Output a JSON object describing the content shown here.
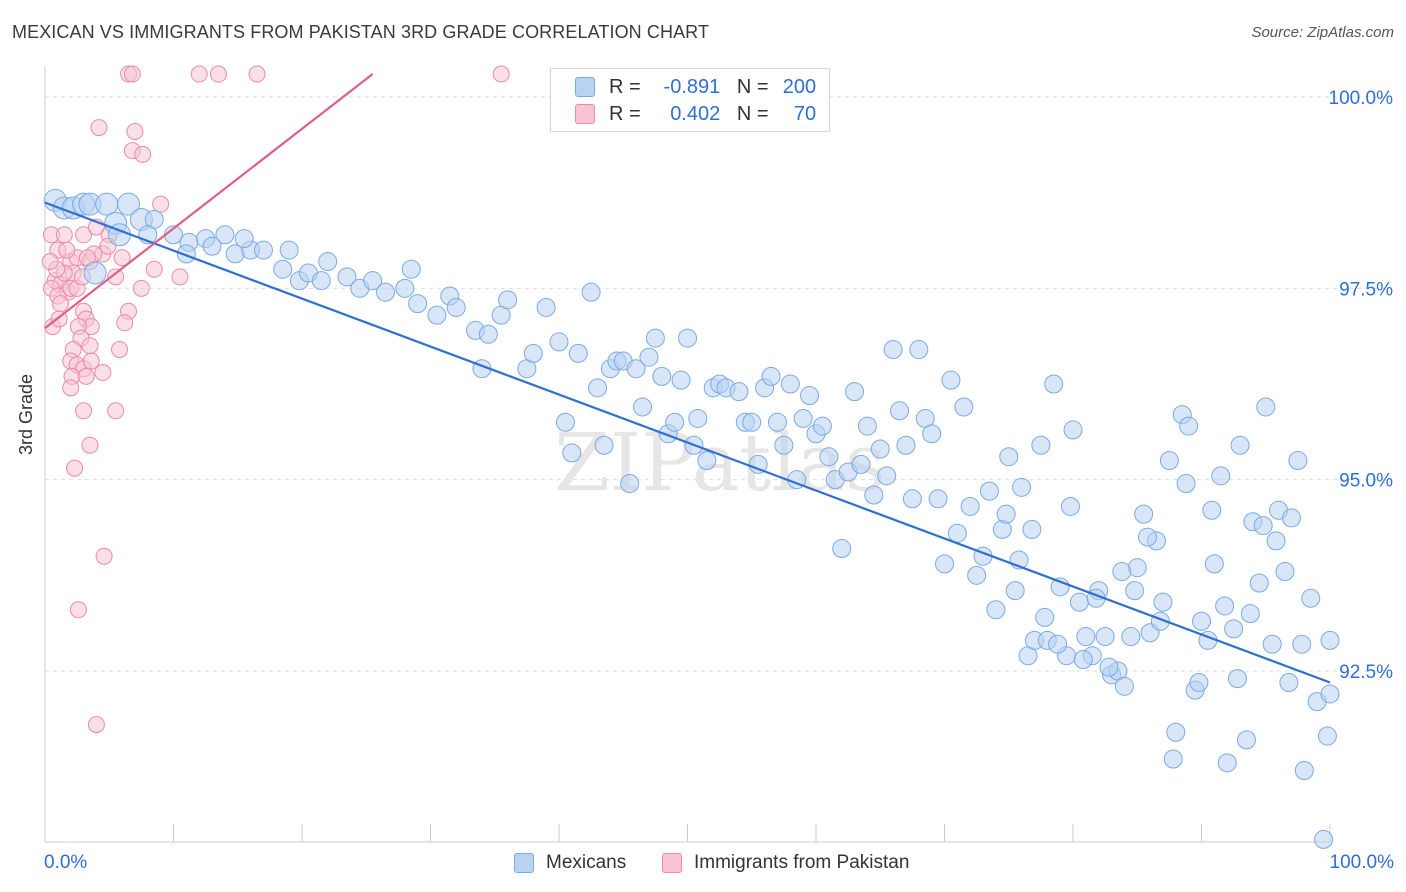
{
  "title": "MEXICAN VS IMMIGRANTS FROM PAKISTAN 3RD GRADE CORRELATION CHART",
  "source": "Source: ZipAtlas.com",
  "watermark": "ZIPatlas",
  "legend": {
    "rows": [
      {
        "r_label": "R =",
        "r_value": "-0.891",
        "n_label": "N =",
        "n_value": "200",
        "color": "#a8c8f0",
        "border": "#6fa0e0"
      },
      {
        "r_label": "R =",
        "r_value": "0.402",
        "n_label": "N =",
        "n_value": "70",
        "color": "#f8b8c8",
        "border": "#e890a8"
      }
    ]
  },
  "bottom_legend": {
    "mexicans": "Mexicans",
    "pakistan": "Immigrants from Pakistan"
  },
  "chart_data": {
    "type": "scatter",
    "title": "MEXICAN VS IMMIGRANTS FROM PAKISTAN 3RD GRADE CORRELATION CHART",
    "xlabel": "",
    "ylabel": "3rd Grade",
    "xlim": [
      0,
      100
    ],
    "ylim": [
      90.0,
      100.5
    ],
    "x_tick_labels": {
      "left": "0.0%",
      "right": "100.0%"
    },
    "y_ticks": [
      {
        "value": 100.0,
        "label": "100.0%"
      },
      {
        "value": 97.5,
        "label": "97.5%"
      },
      {
        "value": 95.0,
        "label": "95.0%"
      },
      {
        "value": 92.5,
        "label": "92.5%"
      }
    ],
    "colors": {
      "mexicans": "#7aaae6",
      "mexicans_fill": "#b8d2f2",
      "pakistan": "#ec8aa8",
      "pakistan_fill": "#f8c4d2",
      "mex_line": "#2f6fd1",
      "pak_line": "#e05c8a",
      "grid": "#dddddd"
    },
    "series": [
      {
        "name": "Mexicans",
        "trend": {
          "x0": 0,
          "y0": 98.62,
          "x1": 100,
          "y1": 92.35
        },
        "points": [
          [
            0.8,
            98.65
          ],
          [
            1.5,
            98.55
          ],
          [
            2.2,
            98.55
          ],
          [
            3.0,
            98.6
          ],
          [
            3.5,
            98.6
          ],
          [
            4.8,
            98.6
          ],
          [
            6.5,
            98.6
          ],
          [
            5.5,
            98.35
          ],
          [
            7.5,
            98.4
          ],
          [
            8.5,
            98.4
          ],
          [
            8.0,
            98.2
          ],
          [
            10.0,
            98.2
          ],
          [
            11.2,
            98.1
          ],
          [
            12.5,
            98.15
          ],
          [
            14.0,
            98.2
          ],
          [
            13.0,
            98.05
          ],
          [
            14.8,
            97.95
          ],
          [
            16.0,
            98.0
          ],
          [
            17.0,
            98.0
          ],
          [
            5.8,
            98.2
          ],
          [
            3.9,
            97.7
          ],
          [
            11.0,
            97.95
          ],
          [
            15.5,
            98.15
          ],
          [
            19.0,
            98.0
          ],
          [
            18.5,
            97.75
          ],
          [
            19.8,
            97.6
          ],
          [
            20.5,
            97.7
          ],
          [
            21.5,
            97.6
          ],
          [
            22.0,
            97.85
          ],
          [
            23.5,
            97.65
          ],
          [
            24.5,
            97.5
          ],
          [
            25.5,
            97.6
          ],
          [
            26.5,
            97.45
          ],
          [
            28.0,
            97.5
          ],
          [
            28.5,
            97.75
          ],
          [
            29.0,
            97.3
          ],
          [
            30.5,
            97.15
          ],
          [
            31.5,
            97.4
          ],
          [
            32.0,
            97.25
          ],
          [
            33.5,
            96.95
          ],
          [
            34.0,
            96.45
          ],
          [
            34.5,
            96.9
          ],
          [
            35.5,
            97.15
          ],
          [
            36.0,
            97.35
          ],
          [
            37.5,
            96.45
          ],
          [
            38.0,
            96.65
          ],
          [
            39.0,
            97.25
          ],
          [
            40.0,
            96.8
          ],
          [
            40.5,
            95.75
          ],
          [
            41.0,
            95.35
          ],
          [
            41.5,
            96.65
          ],
          [
            42.5,
            97.45
          ],
          [
            43.0,
            96.2
          ],
          [
            43.5,
            95.45
          ],
          [
            44.0,
            96.45
          ],
          [
            44.5,
            96.55
          ],
          [
            45.0,
            96.55
          ],
          [
            45.5,
            94.95
          ],
          [
            46.0,
            96.45
          ],
          [
            46.5,
            95.95
          ],
          [
            47.0,
            96.6
          ],
          [
            47.5,
            96.85
          ],
          [
            48.0,
            96.35
          ],
          [
            48.5,
            95.6
          ],
          [
            49.0,
            95.75
          ],
          [
            49.5,
            96.3
          ],
          [
            50.0,
            96.85
          ],
          [
            50.5,
            95.45
          ],
          [
            50.8,
            95.8
          ],
          [
            51.5,
            95.25
          ],
          [
            52.0,
            96.2
          ],
          [
            52.5,
            96.25
          ],
          [
            53.0,
            96.2
          ],
          [
            54.0,
            96.15
          ],
          [
            54.5,
            95.75
          ],
          [
            55.0,
            95.75
          ],
          [
            55.5,
            95.2
          ],
          [
            56.0,
            96.2
          ],
          [
            56.5,
            96.35
          ],
          [
            57.0,
            95.75
          ],
          [
            57.5,
            95.45
          ],
          [
            58.0,
            96.25
          ],
          [
            58.5,
            95.0
          ],
          [
            59.0,
            95.8
          ],
          [
            59.5,
            96.1
          ],
          [
            60.0,
            95.6
          ],
          [
            60.5,
            95.7
          ],
          [
            61.0,
            95.3
          ],
          [
            61.5,
            95.0
          ],
          [
            62.0,
            94.1
          ],
          [
            62.5,
            95.1
          ],
          [
            63.0,
            96.15
          ],
          [
            63.5,
            95.2
          ],
          [
            64.0,
            95.7
          ],
          [
            64.5,
            94.8
          ],
          [
            65.0,
            95.4
          ],
          [
            65.5,
            95.05
          ],
          [
            66.0,
            96.7
          ],
          [
            66.5,
            95.9
          ],
          [
            67.0,
            95.45
          ],
          [
            67.5,
            94.75
          ],
          [
            68.0,
            96.7
          ],
          [
            68.5,
            95.8
          ],
          [
            69.0,
            95.6
          ],
          [
            69.5,
            94.75
          ],
          [
            70.0,
            93.9
          ],
          [
            70.5,
            96.3
          ],
          [
            71.0,
            94.3
          ],
          [
            71.5,
            95.95
          ],
          [
            72.0,
            94.65
          ],
          [
            72.5,
            93.75
          ],
          [
            73.0,
            94.0
          ],
          [
            73.5,
            94.85
          ],
          [
            74.0,
            93.3
          ],
          [
            74.5,
            94.35
          ],
          [
            75.0,
            95.3
          ],
          [
            75.5,
            93.55
          ],
          [
            76.0,
            94.9
          ],
          [
            76.5,
            92.7
          ],
          [
            77.0,
            92.9
          ],
          [
            77.5,
            95.45
          ],
          [
            78.0,
            92.9
          ],
          [
            78.5,
            96.25
          ],
          [
            79.0,
            93.6
          ],
          [
            79.5,
            92.7
          ],
          [
            80.0,
            95.65
          ],
          [
            80.5,
            93.4
          ],
          [
            81.0,
            92.95
          ],
          [
            81.5,
            92.7
          ],
          [
            82.0,
            93.55
          ],
          [
            82.5,
            92.95
          ],
          [
            83.0,
            92.45
          ],
          [
            83.5,
            92.5
          ],
          [
            84.0,
            92.3
          ],
          [
            84.5,
            92.95
          ],
          [
            85.0,
            93.85
          ],
          [
            85.5,
            94.55
          ],
          [
            86.0,
            93.0
          ],
          [
            86.5,
            94.2
          ],
          [
            87.0,
            93.4
          ],
          [
            87.5,
            95.25
          ],
          [
            88.0,
            91.7
          ],
          [
            88.5,
            95.85
          ],
          [
            89.0,
            95.7
          ],
          [
            89.5,
            92.25
          ],
          [
            90.0,
            93.15
          ],
          [
            90.5,
            92.9
          ],
          [
            91.0,
            93.9
          ],
          [
            91.5,
            95.05
          ],
          [
            92.0,
            91.3
          ],
          [
            92.5,
            93.05
          ],
          [
            93.0,
            95.45
          ],
          [
            93.5,
            91.6
          ],
          [
            94.0,
            94.45
          ],
          [
            94.5,
            93.65
          ],
          [
            95.0,
            95.95
          ],
          [
            95.5,
            92.85
          ],
          [
            96.0,
            94.6
          ],
          [
            96.5,
            93.8
          ],
          [
            97.0,
            94.5
          ],
          [
            97.5,
            95.25
          ],
          [
            98.0,
            91.2
          ],
          [
            98.5,
            93.45
          ],
          [
            99.0,
            92.1
          ],
          [
            99.5,
            90.3
          ],
          [
            100.0,
            92.9
          ],
          [
            99.8,
            91.65
          ],
          [
            100.0,
            92.2
          ],
          [
            97.8,
            92.85
          ],
          [
            96.8,
            92.35
          ],
          [
            95.8,
            94.2
          ],
          [
            94.8,
            94.4
          ],
          [
            93.8,
            93.25
          ],
          [
            92.8,
            92.4
          ],
          [
            91.8,
            93.35
          ],
          [
            90.8,
            94.6
          ],
          [
            89.8,
            92.35
          ],
          [
            88.8,
            94.95
          ],
          [
            87.8,
            91.35
          ],
          [
            86.8,
            93.15
          ],
          [
            85.8,
            94.25
          ],
          [
            84.8,
            93.55
          ],
          [
            83.8,
            93.8
          ],
          [
            82.8,
            92.55
          ],
          [
            81.8,
            93.45
          ],
          [
            80.8,
            92.65
          ],
          [
            79.8,
            94.65
          ],
          [
            78.8,
            92.85
          ],
          [
            77.8,
            93.2
          ],
          [
            76.8,
            94.35
          ],
          [
            75.8,
            93.95
          ],
          [
            74.8,
            94.55
          ]
        ]
      },
      {
        "name": "Immigrants from Pakistan",
        "trend": {
          "x0": 0,
          "y0": 96.98,
          "x1": 25.5,
          "y1": 100.3
        },
        "points": [
          [
            6.5,
            100.3
          ],
          [
            6.8,
            100.3
          ],
          [
            12.0,
            100.3
          ],
          [
            13.5,
            100.3
          ],
          [
            16.5,
            100.3
          ],
          [
            35.5,
            100.3
          ],
          [
            4.2,
            99.6
          ],
          [
            7.0,
            99.55
          ],
          [
            6.8,
            99.3
          ],
          [
            7.6,
            99.25
          ],
          [
            9.0,
            98.6
          ],
          [
            0.5,
            98.2
          ],
          [
            1.0,
            98.0
          ],
          [
            1.5,
            98.2
          ],
          [
            2.0,
            97.85
          ],
          [
            2.5,
            97.9
          ],
          [
            3.0,
            98.2
          ],
          [
            3.5,
            97.85
          ],
          [
            4.0,
            98.3
          ],
          [
            4.5,
            97.95
          ],
          [
            5.0,
            98.2
          ],
          [
            5.5,
            97.65
          ],
          [
            6.0,
            97.9
          ],
          [
            6.5,
            97.2
          ],
          [
            7.5,
            97.5
          ],
          [
            8.5,
            97.75
          ],
          [
            10.5,
            97.65
          ],
          [
            0.8,
            97.6
          ],
          [
            1.2,
            97.55
          ],
          [
            1.8,
            97.45
          ],
          [
            2.2,
            97.7
          ],
          [
            0.5,
            97.5
          ],
          [
            1.0,
            97.4
          ],
          [
            1.5,
            97.7
          ],
          [
            2.0,
            97.5
          ],
          [
            2.5,
            97.5
          ],
          [
            3.0,
            97.2
          ],
          [
            3.2,
            97.1
          ],
          [
            3.6,
            97.0
          ],
          [
            0.6,
            97.0
          ],
          [
            1.1,
            97.1
          ],
          [
            2.6,
            97.0
          ],
          [
            2.8,
            96.85
          ],
          [
            3.5,
            96.75
          ],
          [
            2.2,
            96.7
          ],
          [
            2.0,
            96.55
          ],
          [
            2.5,
            96.5
          ],
          [
            3.0,
            96.45
          ],
          [
            3.6,
            96.55
          ],
          [
            4.5,
            96.4
          ],
          [
            5.8,
            96.7
          ],
          [
            6.2,
            97.05
          ],
          [
            2.1,
            96.35
          ],
          [
            3.2,
            96.35
          ],
          [
            2.0,
            96.2
          ],
          [
            3.0,
            95.9
          ],
          [
            5.5,
            95.9
          ],
          [
            3.5,
            95.45
          ],
          [
            2.3,
            95.15
          ],
          [
            4.6,
            94.0
          ],
          [
            2.6,
            93.3
          ],
          [
            4.0,
            91.8
          ],
          [
            1.2,
            97.3
          ],
          [
            0.9,
            97.75
          ],
          [
            1.7,
            98.0
          ],
          [
            3.8,
            97.95
          ],
          [
            4.9,
            98.05
          ],
          [
            0.4,
            97.85
          ],
          [
            2.9,
            97.65
          ],
          [
            3.3,
            97.9
          ]
        ]
      }
    ]
  }
}
